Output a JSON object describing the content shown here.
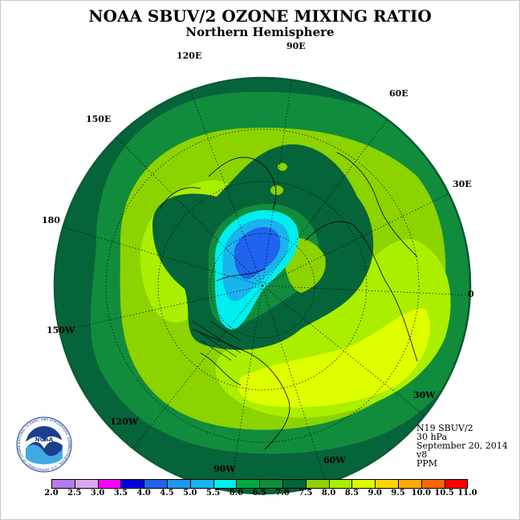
{
  "header": {
    "title": "NOAA SBUV/2 OZONE MIXING RATIO",
    "subtitle": "Northern Hemisphere"
  },
  "longitude_labels": {
    "l90e": "90E",
    "l60e": "60E",
    "l30e": "30E",
    "l0": "0",
    "l30w": "30W",
    "l60w": "60W",
    "l90w": "90W",
    "l120w": "120W",
    "l150w": "150W",
    "l180": "180",
    "l150e": "150E",
    "l120e": "120E"
  },
  "info": {
    "instrument": "N19 SBUV/2",
    "level": "30 hPa",
    "date": "September 20, 2014",
    "version": "v8",
    "units": "PPM"
  },
  "logo": {
    "text": "NOAA",
    "ring_text": "NATIONAL OCEANIC AND ATMOSPHERIC ADMINISTRATION · U.S. DEPARTMENT OF COMMERCE"
  },
  "colorbar": {
    "ticks": [
      "2.0",
      "2.5",
      "3.0",
      "3.5",
      "4.0",
      "4.5",
      "5.0",
      "5.5",
      "6.0",
      "6.5",
      "7.0",
      "7.5",
      "8.0",
      "8.5",
      "9.0",
      "9.5",
      "10.0",
      "10.5",
      "11.0"
    ],
    "colors": [
      "#b57cf0",
      "#dca8f0",
      "#ff00ff",
      "#0000dd",
      "#1e64ee",
      "#1e96f0",
      "#19b4ee",
      "#00eeee",
      "#00aa3c",
      "#118c3c",
      "#06643a",
      "#8cd300",
      "#aaee00",
      "#ddff00",
      "#ffd700",
      "#ffaa00",
      "#ff6600",
      "#ff0000",
      "#7a4a2a"
    ]
  },
  "map_colors": {
    "ring_dark": "#06643a",
    "mid_green": "#118c3c",
    "light_green": "#8cd300",
    "yellow_green": "#aaee00",
    "bright_yellow": "#ddff00",
    "cyan": "#00eeee",
    "blue": "#1e64ee",
    "light_blue": "#19b4ee",
    "darkest": "#004f2c"
  }
}
